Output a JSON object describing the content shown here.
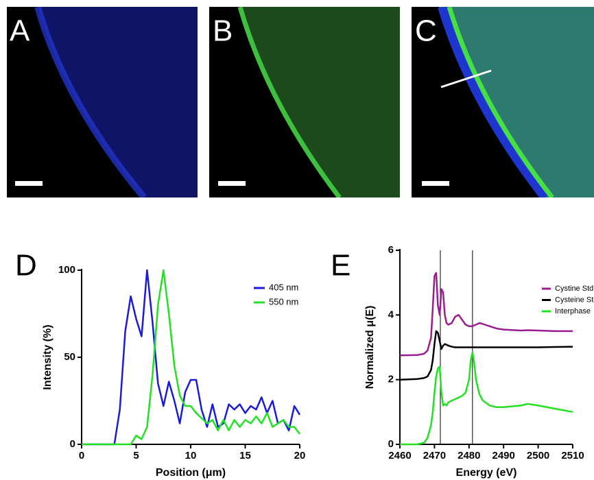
{
  "figure": {
    "image_labels": [
      "A",
      "B",
      "C"
    ]
  },
  "chart_data": [
    {
      "type": "line",
      "panel_label": "D",
      "x_label": "Position (μm)",
      "y_label": "Intensity (%)",
      "x": [
        0,
        0.5,
        1,
        1.5,
        2,
        2.5,
        3,
        3.5,
        4,
        4.5,
        5,
        5.5,
        6,
        6.5,
        7,
        7.5,
        8,
        8.5,
        9,
        9.5,
        10,
        10.5,
        11,
        11.5,
        12,
        12.5,
        13,
        13.5,
        14,
        14.5,
        15,
        15.5,
        16,
        16.5,
        17,
        17.5,
        18,
        18.5,
        19,
        19.5,
        20
      ],
      "series": [
        {
          "name": "405 nm",
          "color": "#1a1adb",
          "values": [
            0,
            0,
            0,
            0,
            0,
            0,
            0,
            20,
            65,
            85,
            72,
            62,
            100,
            70,
            35,
            22,
            36,
            25,
            12,
            30,
            37,
            37,
            20,
            10,
            23,
            10,
            12,
            23,
            20,
            23,
            18,
            22,
            20,
            27,
            18,
            25,
            12,
            14,
            8,
            22,
            17
          ]
        },
        {
          "name": "550 nm",
          "color": "#22e022",
          "values": [
            0,
            0,
            0,
            0,
            0,
            0,
            0,
            0,
            0,
            0,
            5,
            3,
            10,
            40,
            80,
            100,
            75,
            45,
            28,
            22,
            22,
            18,
            15,
            12,
            14,
            8,
            14,
            8,
            14,
            10,
            14,
            12,
            16,
            12,
            18,
            10,
            12,
            14,
            10,
            10,
            6
          ]
        }
      ],
      "xlim": [
        0,
        20
      ],
      "xticks": [
        0,
        5,
        10,
        15,
        20
      ],
      "ylim": [
        0,
        100
      ],
      "yticks": [
        0,
        50,
        100
      ]
    },
    {
      "type": "line",
      "panel_label": "E",
      "x_label": "Energy (eV)",
      "y_label": "Normalized μ(E)",
      "x": [
        2460,
        2465,
        2467,
        2468,
        2469,
        2469.5,
        2470,
        2470.5,
        2471,
        2471.5,
        2472,
        2472.5,
        2473,
        2473.5,
        2474,
        2475,
        2476,
        2477,
        2478,
        2479,
        2480,
        2480.5,
        2481,
        2481.5,
        2482,
        2483,
        2484,
        2486,
        2488,
        2490,
        2495,
        2497,
        2500,
        2505,
        2510
      ],
      "series": [
        {
          "name": "Cystine Std",
          "color": "#9b1c8e",
          "values": [
            2.75,
            2.76,
            2.8,
            2.9,
            3.3,
            4.2,
            5.2,
            5.3,
            4.3,
            4.0,
            4.8,
            4.7,
            4.0,
            3.75,
            3.7,
            3.75,
            3.95,
            4.0,
            3.85,
            3.7,
            3.65,
            3.65,
            3.65,
            3.68,
            3.7,
            3.75,
            3.72,
            3.65,
            3.58,
            3.55,
            3.52,
            3.53,
            3.52,
            3.5,
            3.5
          ]
        },
        {
          "name": "Cysteine Std",
          "color": "#000000",
          "values": [
            2.0,
            2.02,
            2.05,
            2.1,
            2.3,
            2.6,
            3.1,
            3.5,
            3.45,
            3.2,
            2.95,
            3.05,
            3.1,
            3.08,
            3.05,
            3.02,
            3.0,
            3.0,
            3.0,
            3.0,
            3.0,
            3.0,
            3.0,
            3.0,
            3.0,
            3.0,
            3.0,
            3.0,
            3.0,
            3.0,
            3.0,
            3.0,
            3.0,
            3.01,
            3.02
          ]
        },
        {
          "name": "Interphase",
          "color": "#22e022",
          "values": [
            0,
            0,
            0.05,
            0.2,
            0.6,
            1.0,
            1.6,
            2.1,
            2.35,
            2.4,
            1.6,
            1.2,
            1.25,
            1.2,
            1.3,
            1.35,
            1.4,
            1.45,
            1.5,
            1.6,
            2.0,
            2.6,
            2.85,
            2.5,
            2.0,
            1.55,
            1.35,
            1.2,
            1.15,
            1.15,
            1.2,
            1.25,
            1.2,
            1.1,
            1.0
          ]
        }
      ],
      "vlines": [
        2471.7,
        2481
      ],
      "xlim": [
        2460,
        2510
      ],
      "xticks": [
        2460,
        2470,
        2480,
        2490,
        2500,
        2510
      ],
      "ylim": [
        0,
        6
      ],
      "yticks": [
        0,
        2,
        4,
        6
      ]
    }
  ]
}
